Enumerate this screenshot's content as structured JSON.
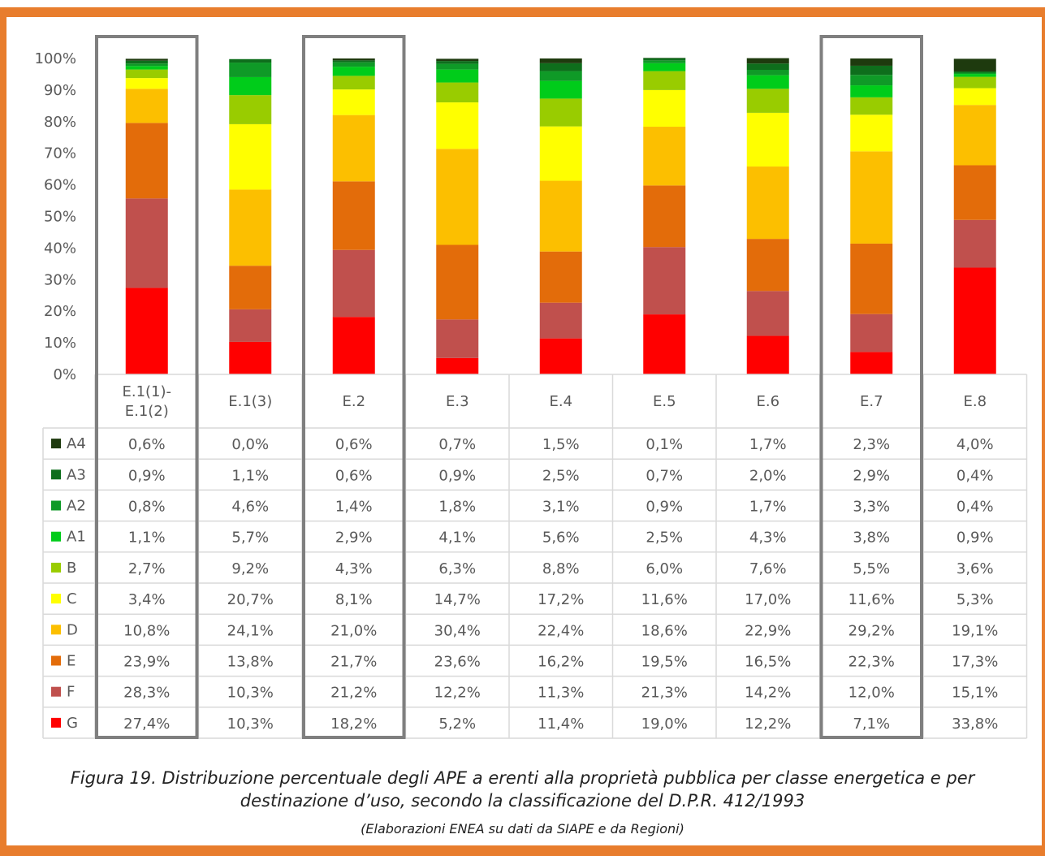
{
  "chart_data": {
    "type": "bar",
    "stacked": true,
    "categories": [
      "E.1(1)-\nE.1(2)",
      "E.1(3)",
      "E.2",
      "E.3",
      "E.4",
      "E.5",
      "E.6",
      "E.7",
      "E.8"
    ],
    "highlighted_categories": [
      "E.1(1)-\nE.1(2)",
      "E.2",
      "E.7"
    ],
    "ylim": [
      0,
      100
    ],
    "y_ticks": [
      "0%",
      "10%",
      "20%",
      "30%",
      "40%",
      "50%",
      "60%",
      "70%",
      "80%",
      "90%",
      "100%"
    ],
    "grid": false,
    "legend": "data-table-left",
    "series": [
      {
        "name": "A4",
        "color": "#1e3a0e",
        "labels": [
          "0,6%",
          "0,0%",
          "0,6%",
          "0,7%",
          "1,5%",
          "0,1%",
          "1,7%",
          "2,3%",
          "4,0%"
        ],
        "values": [
          0.6,
          0.0,
          0.6,
          0.7,
          1.5,
          0.1,
          1.7,
          2.3,
          4.0
        ]
      },
      {
        "name": "A3",
        "color": "#0e6e1c",
        "labels": [
          "0,9%",
          "1,1%",
          "0,6%",
          "0,9%",
          "2,5%",
          "0,7%",
          "2,0%",
          "2,9%",
          "0,4%"
        ],
        "values": [
          0.9,
          1.1,
          0.6,
          0.9,
          2.5,
          0.7,
          2.0,
          2.9,
          0.4
        ]
      },
      {
        "name": "A2",
        "color": "#0f9a27",
        "labels": [
          "0,8%",
          "4,6%",
          "1,4%",
          "1,8%",
          "3,1%",
          "0,9%",
          "1,7%",
          "3,3%",
          "0,4%"
        ],
        "values": [
          0.8,
          4.6,
          1.4,
          1.8,
          3.1,
          0.9,
          1.7,
          3.3,
          0.4
        ]
      },
      {
        "name": "A1",
        "color": "#00cc1a",
        "labels": [
          "1,1%",
          "5,7%",
          "2,9%",
          "4,1%",
          "5,6%",
          "2,5%",
          "4,3%",
          "3,8%",
          "0,9%"
        ],
        "values": [
          1.1,
          5.7,
          2.9,
          4.1,
          5.6,
          2.5,
          4.3,
          3.8,
          0.9
        ]
      },
      {
        "name": "B",
        "color": "#99cc00",
        "labels": [
          "2,7%",
          "9,2%",
          "4,3%",
          "6,3%",
          "8,8%",
          "6,0%",
          "7,6%",
          "5,5%",
          "3,6%"
        ],
        "values": [
          2.7,
          9.2,
          4.3,
          6.3,
          8.8,
          6.0,
          7.6,
          5.5,
          3.6
        ]
      },
      {
        "name": "C",
        "color": "#ffff00",
        "labels": [
          "3,4%",
          "20,7%",
          "8,1%",
          "14,7%",
          "17,2%",
          "11,6%",
          "17,0%",
          "11,6%",
          "5,3%"
        ],
        "values": [
          3.4,
          20.7,
          8.1,
          14.7,
          17.2,
          11.6,
          17.0,
          11.6,
          5.3
        ]
      },
      {
        "name": "D",
        "color": "#fcbf00",
        "labels": [
          "10,8%",
          "24,1%",
          "21,0%",
          "30,4%",
          "22,4%",
          "18,6%",
          "22,9%",
          "29,2%",
          "19,1%"
        ],
        "values": [
          10.8,
          24.1,
          21.0,
          30.4,
          22.4,
          18.6,
          22.9,
          29.2,
          19.1
        ]
      },
      {
        "name": "E",
        "color": "#e36c0a",
        "labels": [
          "23,9%",
          "13,8%",
          "21,7%",
          "23,6%",
          "16,2%",
          "19,5%",
          "16,5%",
          "22,3%",
          "17,3%"
        ],
        "values": [
          23.9,
          13.8,
          21.7,
          23.6,
          16.2,
          19.5,
          16.5,
          22.3,
          17.3
        ]
      },
      {
        "name": "F",
        "color": "#c0504d",
        "labels": [
          "28,3%",
          "10,3%",
          "21,2%",
          "12,2%",
          "11,3%",
          "21,3%",
          "14,2%",
          "12,0%",
          "15,1%"
        ],
        "values": [
          28.3,
          10.3,
          21.2,
          12.2,
          11.3,
          21.3,
          14.2,
          12.0,
          15.1
        ]
      },
      {
        "name": "G",
        "color": "#ff0000",
        "labels": [
          "27,4%",
          "10,3%",
          "18,2%",
          "5,2%",
          "11,4%",
          "19,0%",
          "12,2%",
          "7,1%",
          "33,8%"
        ],
        "values": [
          27.4,
          10.3,
          18.2,
          5.2,
          11.4,
          19.0,
          12.2,
          7.1,
          33.8
        ]
      }
    ]
  },
  "caption": {
    "line1": "Figura 19. Distribuzione percentuale degli APE a  erenti alla proprietà pubblica per classe energetica e per",
    "line2": "destinazione d’uso, secondo la classificazione del D.P.R. 412/1993",
    "source": "(Elaborazioni ENEA su dati da SIAPE e da Regioni)"
  },
  "colors": {
    "frame_orange": "#e87d2d",
    "highlight_box": "#7f7f7f",
    "table_border": "#d9d9d9",
    "text": "#595959"
  }
}
